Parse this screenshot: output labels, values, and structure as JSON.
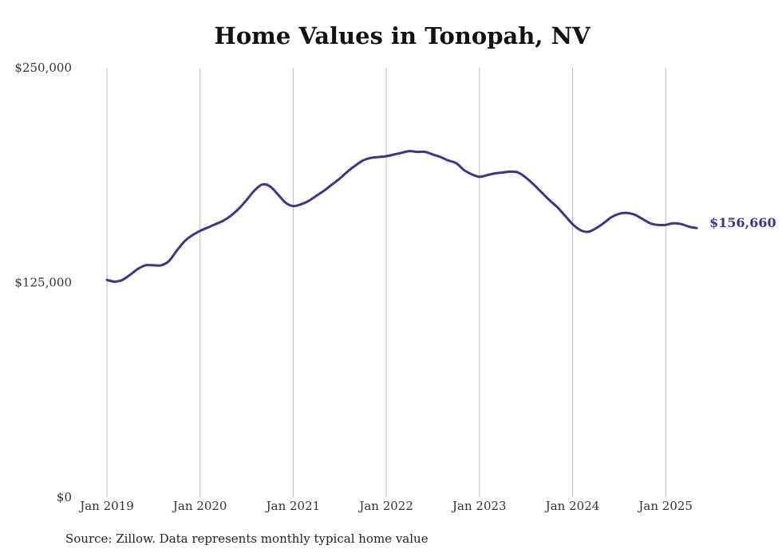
{
  "chart_data": {
    "type": "line",
    "title": "Home Values in Tonopah, NV",
    "source": "Source: Zillow. Data represents monthly typical home value",
    "ylim": [
      0,
      250000
    ],
    "yticks": [
      {
        "value": 0,
        "label": "$0"
      },
      {
        "value": 125000,
        "label": "$125,000"
      },
      {
        "value": 250000,
        "label": "$250,000"
      }
    ],
    "xticks": [
      {
        "value": "2019-01",
        "label": "Jan 2019"
      },
      {
        "value": "2020-01",
        "label": "Jan 2020"
      },
      {
        "value": "2021-01",
        "label": "Jan 2021"
      },
      {
        "value": "2022-01",
        "label": "Jan 2022"
      },
      {
        "value": "2023-01",
        "label": "Jan 2023"
      },
      {
        "value": "2024-01",
        "label": "Jan 2024"
      },
      {
        "value": "2025-01",
        "label": "Jan 2025"
      }
    ],
    "grid": "vertical",
    "line_color": "#3a3495",
    "end_label": "$156,660",
    "series": [
      {
        "x": [
          "2019-01",
          "2019-02",
          "2019-03",
          "2019-04",
          "2019-05",
          "2019-06",
          "2019-07",
          "2019-08",
          "2019-09",
          "2019-10",
          "2019-11",
          "2019-12",
          "2020-01",
          "2020-02",
          "2020-03",
          "2020-04",
          "2020-05",
          "2020-06",
          "2020-07",
          "2020-08",
          "2020-09",
          "2020-10",
          "2020-11",
          "2020-12",
          "2021-01",
          "2021-02",
          "2021-03",
          "2021-04",
          "2021-05",
          "2021-06",
          "2021-07",
          "2021-08",
          "2021-09",
          "2021-10",
          "2021-11",
          "2021-12",
          "2022-01",
          "2022-02",
          "2022-03",
          "2022-04",
          "2022-05",
          "2022-06",
          "2022-07",
          "2022-08",
          "2022-09",
          "2022-10",
          "2022-11",
          "2022-12",
          "2023-01",
          "2023-02",
          "2023-03",
          "2023-04",
          "2023-05",
          "2023-06",
          "2023-07",
          "2023-08",
          "2023-09",
          "2023-10",
          "2023-11",
          "2023-12",
          "2024-01",
          "2024-02",
          "2024-03",
          "2024-04",
          "2024-05",
          "2024-06",
          "2024-07",
          "2024-08",
          "2024-09",
          "2024-10",
          "2024-11",
          "2024-12",
          "2025-01",
          "2025-02",
          "2025-03",
          "2025-04",
          "2025-05"
        ],
        "values": [
          126500,
          125500,
          126500,
          129500,
          133000,
          135000,
          135000,
          135000,
          137500,
          143500,
          149000,
          152500,
          155000,
          157000,
          159000,
          161000,
          164000,
          168000,
          173000,
          178500,
          182000,
          181000,
          176500,
          171500,
          169500,
          170500,
          172500,
          175500,
          178500,
          182000,
          185500,
          189500,
          193000,
          196000,
          197500,
          198000,
          198500,
          199500,
          200500,
          201500,
          201000,
          201000,
          199500,
          198000,
          196000,
          194500,
          190500,
          188000,
          186500,
          187500,
          188500,
          189000,
          189500,
          189000,
          186000,
          182000,
          177500,
          173000,
          169000,
          164000,
          159000,
          155500,
          154500,
          156500,
          159500,
          163000,
          165000,
          165500,
          164500,
          162000,
          159500,
          158500,
          158500,
          159500,
          159000,
          157500,
          156660
        ]
      }
    ]
  }
}
